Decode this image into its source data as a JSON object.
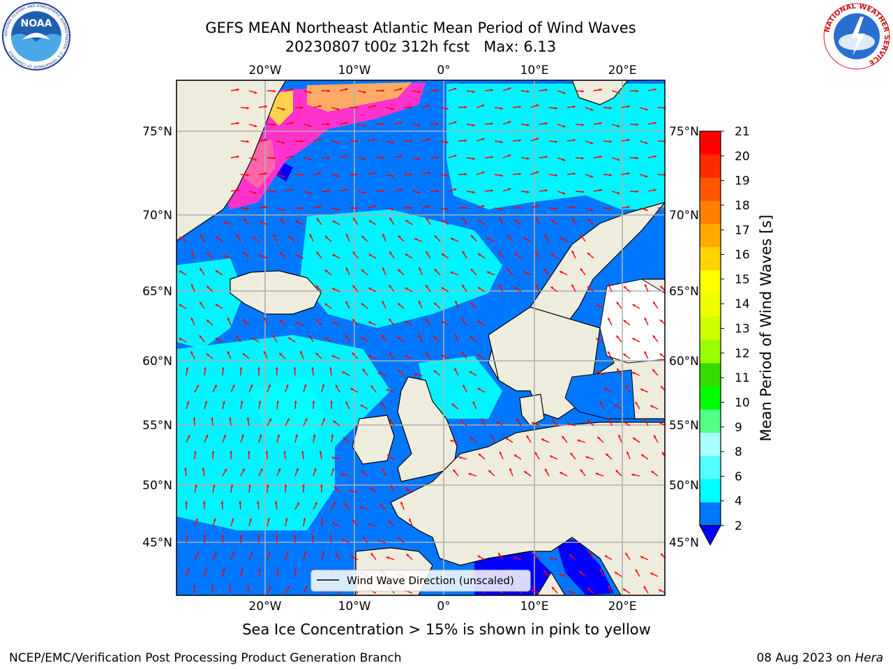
{
  "header": {
    "title_line1": "GEFS MEAN Northeast Atlantic Mean Period of Wind Waves",
    "title_line2": "20230807 t00z 312h fcst   Max: 6.13"
  },
  "logos": {
    "left": {
      "name": "NOAA",
      "ring_text": "NATIONAL OCEANIC AND ATMOSPHERIC ADMINISTRATION · U.S. DEPARTMENT OF COMMERCE"
    },
    "right": {
      "name": "NATIONAL WEATHER SERVICE"
    }
  },
  "map": {
    "lon_labels": [
      "20°W",
      "10°W",
      "0°",
      "10°E",
      "20°E"
    ],
    "lat_labels": [
      "75°N",
      "70°N",
      "65°N",
      "60°N",
      "55°N",
      "50°N",
      "45°N"
    ],
    "legend_label": "Wind Wave Direction (unscaled)",
    "arrow_color": "#ff0000",
    "land_color": "#eeecdd",
    "ice_colors": [
      "#ff33cc",
      "#ff66aa",
      "#ffaa66",
      "#ffd24d"
    ]
  },
  "colorbar": {
    "label": "Mean Period of Wind Waves [s]",
    "ticks": [
      "21",
      "20",
      "19",
      "18",
      "17",
      "16",
      "15",
      "14",
      "13",
      "12",
      "11",
      "10",
      "9",
      "8",
      "6",
      "4",
      "2"
    ],
    "colors": [
      "#ff0000",
      "#ff2a00",
      "#ff5500",
      "#ff7f00",
      "#ffaa00",
      "#ffd400",
      "#ffff00",
      "#eeff00",
      "#ccff00",
      "#99ff00",
      "#33dd00",
      "#00ff00",
      "#55ff88",
      "#aaffff",
      "#55ffff",
      "#00ffff",
      "#0077ff",
      "#0000ff"
    ]
  },
  "note": "Sea Ice Concentration > 15% is shown in pink to yellow",
  "footer": {
    "left": "NCEP/EMC/Verification Post Processing Product Generation Branch",
    "date": "08 Aug 2023 on",
    "host": "Hera"
  }
}
